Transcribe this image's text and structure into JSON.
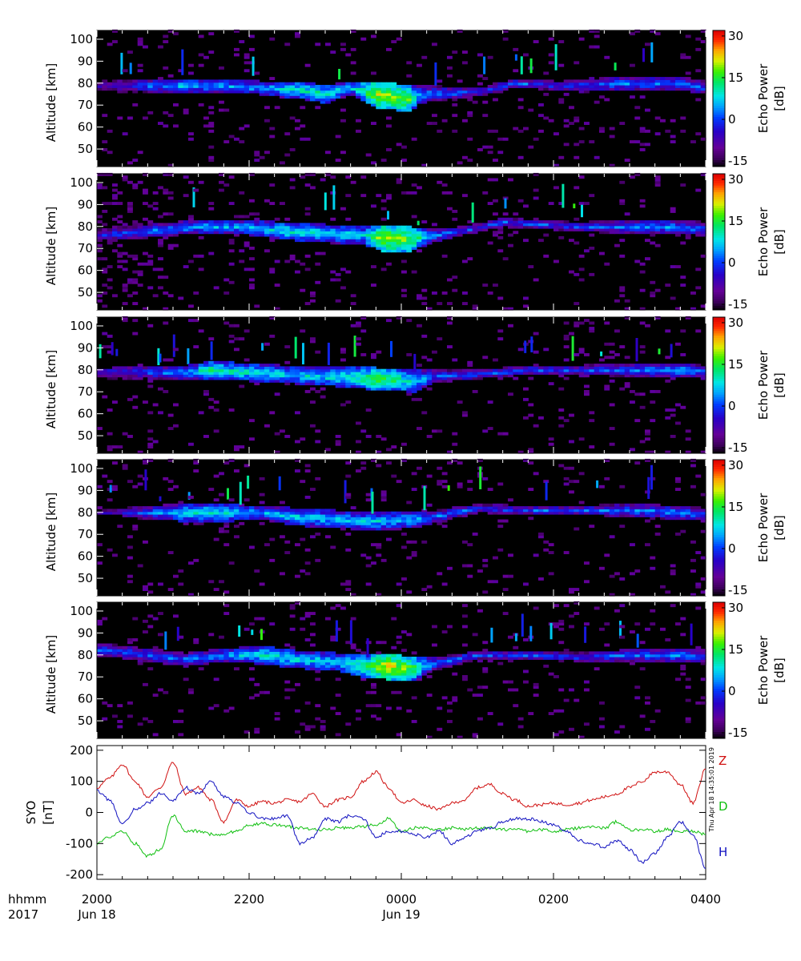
{
  "chart_data": [
    {
      "type": "heatmap",
      "panel": 1,
      "ylabel": "Altitude [km]",
      "ylim": [
        42,
        104
      ],
      "yticks": [
        50,
        60,
        70,
        80,
        90,
        100
      ],
      "xlim": [
        0,
        480
      ],
      "colorbar": {
        "label": "Echo Power",
        "unit": "[dB]",
        "ticks": [
          -15,
          0,
          15,
          30
        ],
        "range": [
          -17,
          32
        ]
      },
      "echo_layer": [
        {
          "t": 40,
          "alt": 79,
          "width": 3,
          "power": 2
        },
        {
          "t": 70,
          "alt": 79,
          "width": 3,
          "power": 8
        },
        {
          "t": 100,
          "alt": 79,
          "width": 3,
          "power": 5
        },
        {
          "t": 130,
          "alt": 78,
          "width": 3,
          "power": 6
        },
        {
          "t": 160,
          "alt": 77,
          "width": 4,
          "power": 10
        },
        {
          "t": 180,
          "alt": 75,
          "width": 4,
          "power": 12
        },
        {
          "t": 200,
          "alt": 78,
          "width": 3,
          "power": 6
        },
        {
          "t": 220,
          "alt": 75,
          "width": 6,
          "power": 20
        },
        {
          "t": 245,
          "alt": 73,
          "width": 6,
          "power": 18
        },
        {
          "t": 255,
          "alt": 75,
          "width": 4,
          "power": 4
        },
        {
          "t": 300,
          "alt": 76,
          "width": 2,
          "power": 0
        },
        {
          "t": 330,
          "alt": 80,
          "width": 2,
          "power": 2
        },
        {
          "t": 360,
          "alt": 79,
          "width": 2,
          "power": 0
        },
        {
          "t": 380,
          "alt": 79,
          "width": 3,
          "power": 1
        },
        {
          "t": 420,
          "alt": 80,
          "width": 3,
          "power": 4
        },
        {
          "t": 460,
          "alt": 80,
          "width": 3,
          "power": 3
        },
        {
          "t": 480,
          "alt": 78,
          "width": 3,
          "power": 2
        }
      ]
    },
    {
      "type": "heatmap",
      "panel": 2,
      "ylabel": "Altitude [km]",
      "ylim": [
        42,
        104
      ],
      "yticks": [
        50,
        60,
        70,
        80,
        90,
        100
      ],
      "xlim": [
        0,
        480
      ],
      "colorbar": {
        "label": "Echo Power",
        "unit": "[dB]",
        "ticks": [
          -15,
          0,
          15,
          30
        ],
        "range": [
          -17,
          32
        ]
      },
      "echo_layer": [
        {
          "t": 40,
          "alt": 78,
          "width": 3,
          "power": 2
        },
        {
          "t": 80,
          "alt": 80,
          "width": 3,
          "power": 6
        },
        {
          "t": 110,
          "alt": 80,
          "width": 3,
          "power": 6
        },
        {
          "t": 150,
          "alt": 78,
          "width": 4,
          "power": 10
        },
        {
          "t": 180,
          "alt": 77,
          "width": 4,
          "power": 9
        },
        {
          "t": 210,
          "alt": 76,
          "width": 4,
          "power": 8
        },
        {
          "t": 225,
          "alt": 75,
          "width": 6,
          "power": 20
        },
        {
          "t": 245,
          "alt": 74,
          "width": 6,
          "power": 18
        },
        {
          "t": 265,
          "alt": 76,
          "width": 3,
          "power": 4
        },
        {
          "t": 290,
          "alt": 78,
          "width": 2,
          "power": 0
        },
        {
          "t": 320,
          "alt": 82,
          "width": 2,
          "power": 2
        },
        {
          "t": 350,
          "alt": 81,
          "width": 2,
          "power": 1
        },
        {
          "t": 380,
          "alt": 80,
          "width": 2,
          "power": 1
        },
        {
          "t": 410,
          "alt": 80,
          "width": 3,
          "power": 2
        },
        {
          "t": 450,
          "alt": 80,
          "width": 3,
          "power": 5
        },
        {
          "t": 480,
          "alt": 79,
          "width": 3,
          "power": 2
        }
      ]
    },
    {
      "type": "heatmap",
      "panel": 3,
      "ylabel": "Altitude [km]",
      "ylim": [
        42,
        104
      ],
      "yticks": [
        50,
        60,
        70,
        80,
        90,
        100
      ],
      "xlim": [
        0,
        480
      ],
      "colorbar": {
        "label": "Echo Power",
        "unit": "[dB]",
        "ticks": [
          -15,
          0,
          15,
          30
        ],
        "range": [
          -17,
          32
        ]
      },
      "echo_layer": [
        {
          "t": 40,
          "alt": 79,
          "width": 3,
          "power": 1
        },
        {
          "t": 70,
          "alt": 79,
          "width": 3,
          "power": 5
        },
        {
          "t": 90,
          "alt": 80,
          "width": 4,
          "power": 12
        },
        {
          "t": 120,
          "alt": 79,
          "width": 4,
          "power": 10
        },
        {
          "t": 150,
          "alt": 78,
          "width": 4,
          "power": 8
        },
        {
          "t": 180,
          "alt": 77,
          "width": 4,
          "power": 9
        },
        {
          "t": 200,
          "alt": 77,
          "width": 5,
          "power": 10
        },
        {
          "t": 220,
          "alt": 76,
          "width": 5,
          "power": 16
        },
        {
          "t": 250,
          "alt": 75,
          "width": 5,
          "power": 10
        },
        {
          "t": 265,
          "alt": 77,
          "width": 3,
          "power": 3
        },
        {
          "t": 300,
          "alt": 78,
          "width": 2,
          "power": 1
        },
        {
          "t": 340,
          "alt": 80,
          "width": 2,
          "power": 1
        },
        {
          "t": 380,
          "alt": 80,
          "width": 2,
          "power": 1
        },
        {
          "t": 420,
          "alt": 80,
          "width": 3,
          "power": 2
        },
        {
          "t": 460,
          "alt": 80,
          "width": 3,
          "power": 6
        },
        {
          "t": 480,
          "alt": 79,
          "width": 3,
          "power": 2
        }
      ]
    },
    {
      "type": "heatmap",
      "panel": 4,
      "ylabel": "Altitude [km]",
      "ylim": [
        42,
        104
      ],
      "yticks": [
        50,
        60,
        70,
        80,
        90,
        100
      ],
      "xlim": [
        0,
        480
      ],
      "colorbar": {
        "label": "Echo Power",
        "unit": "[dB]",
        "ticks": [
          -15,
          0,
          15,
          30
        ],
        "range": [
          -17,
          32
        ]
      },
      "echo_layer": [
        {
          "t": 40,
          "alt": 80,
          "width": 3,
          "power": 2
        },
        {
          "t": 70,
          "alt": 80,
          "width": 4,
          "power": 9
        },
        {
          "t": 100,
          "alt": 80,
          "width": 4,
          "power": 10
        },
        {
          "t": 130,
          "alt": 80,
          "width": 3,
          "power": 6
        },
        {
          "t": 160,
          "alt": 78,
          "width": 4,
          "power": 8
        },
        {
          "t": 190,
          "alt": 77,
          "width": 4,
          "power": 7
        },
        {
          "t": 220,
          "alt": 76,
          "width": 4,
          "power": 8
        },
        {
          "t": 250,
          "alt": 77,
          "width": 4,
          "power": 6
        },
        {
          "t": 265,
          "alt": 78,
          "width": 3,
          "power": 2
        },
        {
          "t": 300,
          "alt": 82,
          "width": 2,
          "power": 1
        },
        {
          "t": 340,
          "alt": 81,
          "width": 2,
          "power": 1
        },
        {
          "t": 380,
          "alt": 81,
          "width": 2,
          "power": 1
        },
        {
          "t": 420,
          "alt": 81,
          "width": 3,
          "power": 3
        },
        {
          "t": 460,
          "alt": 80,
          "width": 3,
          "power": 4
        },
        {
          "t": 480,
          "alt": 79,
          "width": 3,
          "power": 2
        }
      ]
    },
    {
      "type": "heatmap",
      "panel": 5,
      "ylabel": "Altitude [km]",
      "ylim": [
        42,
        104
      ],
      "yticks": [
        50,
        60,
        70,
        80,
        90,
        100
      ],
      "xlim": [
        0,
        480
      ],
      "colorbar": {
        "label": "Echo Power",
        "unit": "[dB]",
        "ticks": [
          -15,
          0,
          15,
          30
        ],
        "range": [
          -17,
          32
        ]
      },
      "echo_layer": [
        {
          "t": 40,
          "alt": 80,
          "width": 3,
          "power": 2
        },
        {
          "t": 70,
          "alt": 78,
          "width": 3,
          "power": 3
        },
        {
          "t": 100,
          "alt": 80,
          "width": 3,
          "power": 4
        },
        {
          "t": 130,
          "alt": 80,
          "width": 4,
          "power": 10
        },
        {
          "t": 160,
          "alt": 78,
          "width": 4,
          "power": 9
        },
        {
          "t": 190,
          "alt": 77,
          "width": 4,
          "power": 8
        },
        {
          "t": 210,
          "alt": 75,
          "width": 5,
          "power": 14
        },
        {
          "t": 230,
          "alt": 75,
          "width": 6,
          "power": 22
        },
        {
          "t": 250,
          "alt": 74,
          "width": 5,
          "power": 16
        },
        {
          "t": 265,
          "alt": 76,
          "width": 3,
          "power": 3
        },
        {
          "t": 300,
          "alt": 80,
          "width": 2,
          "power": 1
        },
        {
          "t": 340,
          "alt": 80,
          "width": 2,
          "power": 1
        },
        {
          "t": 380,
          "alt": 79,
          "width": 2,
          "power": 1
        },
        {
          "t": 420,
          "alt": 80,
          "width": 3,
          "power": 2
        },
        {
          "t": 460,
          "alt": 80,
          "width": 3,
          "power": 4
        },
        {
          "t": 480,
          "alt": 79,
          "width": 3,
          "power": 2
        }
      ]
    },
    {
      "type": "line",
      "ylabel_line1": "SYO",
      "ylabel_line2": "[nT]",
      "ylim": [
        -215,
        215
      ],
      "yticks": [
        -200,
        -100,
        0,
        100,
        200
      ],
      "xlim": [
        0,
        480
      ],
      "series": [
        {
          "name": "Z",
          "color": "#d01010",
          "t": [
            0,
            10,
            20,
            30,
            40,
            50,
            60,
            70,
            80,
            90,
            100,
            110,
            120,
            130,
            140,
            150,
            160,
            170,
            180,
            190,
            200,
            210,
            220,
            230,
            240,
            250,
            260,
            270,
            280,
            290,
            300,
            310,
            320,
            330,
            340,
            350,
            360,
            370,
            380,
            390,
            400,
            410,
            420,
            430,
            440,
            450,
            460,
            470,
            480
          ],
          "values": [
            80,
            110,
            155,
            100,
            50,
            80,
            160,
            60,
            80,
            40,
            -30,
            40,
            20,
            35,
            30,
            40,
            35,
            60,
            20,
            40,
            50,
            100,
            130,
            80,
            30,
            40,
            20,
            10,
            30,
            40,
            80,
            90,
            60,
            40,
            20,
            25,
            30,
            25,
            30,
            40,
            50,
            60,
            80,
            100,
            130,
            130,
            90,
            30,
            140
          ]
        },
        {
          "name": "D",
          "color": "#10c010",
          "t": [
            0,
            10,
            20,
            30,
            40,
            50,
            60,
            70,
            80,
            90,
            100,
            110,
            120,
            130,
            140,
            150,
            160,
            170,
            180,
            190,
            200,
            210,
            220,
            230,
            240,
            250,
            260,
            270,
            280,
            290,
            300,
            310,
            320,
            330,
            340,
            350,
            360,
            370,
            380,
            390,
            400,
            410,
            420,
            430,
            440,
            450,
            460,
            470,
            480
          ],
          "values": [
            -100,
            -80,
            -60,
            -100,
            -140,
            -120,
            -10,
            -60,
            -60,
            -70,
            -70,
            -60,
            -40,
            -35,
            -40,
            -45,
            -50,
            -55,
            -55,
            -50,
            -50,
            -45,
            -40,
            -20,
            -60,
            -50,
            -50,
            -55,
            -50,
            -55,
            -50,
            -50,
            -55,
            -55,
            -60,
            -55,
            -60,
            -55,
            -50,
            -45,
            -50,
            -30,
            -55,
            -55,
            -60,
            -55,
            -60,
            -60,
            -70
          ]
        },
        {
          "name": "H",
          "color": "#1010c0",
          "t": [
            0,
            10,
            20,
            30,
            40,
            50,
            60,
            70,
            80,
            90,
            100,
            110,
            120,
            130,
            140,
            150,
            160,
            170,
            180,
            190,
            200,
            210,
            220,
            230,
            240,
            250,
            260,
            270,
            280,
            290,
            300,
            310,
            320,
            330,
            340,
            350,
            360,
            370,
            380,
            390,
            400,
            410,
            420,
            430,
            440,
            450,
            460,
            470,
            480
          ],
          "values": [
            70,
            40,
            -40,
            10,
            30,
            60,
            40,
            80,
            60,
            100,
            50,
            30,
            0,
            -20,
            -20,
            -10,
            -100,
            -80,
            -20,
            -30,
            -10,
            -20,
            -80,
            -60,
            -60,
            -70,
            -80,
            -60,
            -100,
            -80,
            -60,
            -50,
            -30,
            -20,
            -20,
            -30,
            -40,
            -60,
            -90,
            -100,
            -110,
            -90,
            -120,
            -160,
            -130,
            -80,
            -30,
            -70,
            -180
          ]
        }
      ]
    }
  ],
  "x_axis": {
    "header_line1": "hhmm",
    "header_line2": "2017",
    "ticks": [
      {
        "t": 0,
        "label": "2000",
        "date": "Jun 18"
      },
      {
        "t": 120,
        "label": "2200",
        "date": ""
      },
      {
        "t": 240,
        "label": "0000",
        "date": "Jun 19"
      },
      {
        "t": 360,
        "label": "0200",
        "date": ""
      },
      {
        "t": 480,
        "label": "0400",
        "date": ""
      }
    ],
    "minor_step": 20
  },
  "timestamp": "Thu Apr 18 14:35:01 2019"
}
